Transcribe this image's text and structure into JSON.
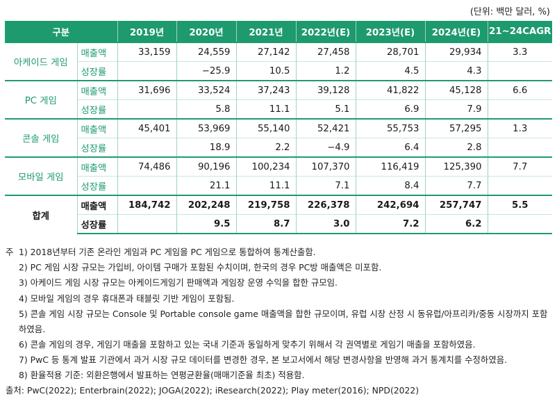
{
  "unit": "(단위: 백만 달러, %)",
  "table": {
    "headers": [
      "구분",
      "2019년",
      "2020년",
      "2021년",
      "2022년(E)",
      "2023년(E)",
      "2024년(E)",
      "21~24CAGR"
    ],
    "categories": [
      {
        "label": "아케이드 게임",
        "sales_label": "매출액",
        "sales": [
          "33,159",
          "24,559",
          "27,142",
          "27,458",
          "28,701",
          "29,934"
        ],
        "cagr": "3.3",
        "growth_label": "성장률",
        "growth": [
          "",
          "−25.9",
          "10.5",
          "1.2",
          "4.5",
          "4.3"
        ]
      },
      {
        "label": "PC 게임",
        "sales_label": "매출액",
        "sales": [
          "31,696",
          "33,524",
          "37,243",
          "39,128",
          "41,822",
          "45,128"
        ],
        "cagr": "6.6",
        "growth_label": "성장률",
        "growth": [
          "",
          "5.8",
          "11.1",
          "5.1",
          "6.9",
          "7.9"
        ]
      },
      {
        "label": "콘솔 게임",
        "sales_label": "매출액",
        "sales": [
          "45,401",
          "53,969",
          "55,140",
          "52,421",
          "55,753",
          "57,295"
        ],
        "cagr": "1.3",
        "growth_label": "성장률",
        "growth": [
          "",
          "18.9",
          "2.2",
          "−4.9",
          "6.4",
          "2.8"
        ]
      },
      {
        "label": "모바일 게임",
        "sales_label": "매출액",
        "sales": [
          "74,486",
          "90,196",
          "100,234",
          "107,370",
          "116,419",
          "125,390"
        ],
        "cagr": "7.7",
        "growth_label": "성장률",
        "growth": [
          "",
          "21.1",
          "11.1",
          "7.1",
          "8.4",
          "7.7"
        ]
      }
    ],
    "total": {
      "label": "합계",
      "sales_label": "매출액",
      "sales": [
        "184,742",
        "202,248",
        "219,758",
        "226,378",
        "242,694",
        "257,747"
      ],
      "cagr": "5.5",
      "growth_label": "성장률",
      "growth": [
        "",
        "9.5",
        "8.7",
        "3.0",
        "7.2",
        "6.2"
      ]
    }
  },
  "notes": {
    "prefix": "주",
    "items": [
      "1)  2018년부터 기존 온라인 게임과 PC 게임을 PC 게임으로 통합하여 통계산출함.",
      "2)  PC 게임 시장 규모는 가입비, 아이템 구매가 포함된 수치이며, 한국의 경우 PC방 매출액은 미포함.",
      "3)  아케이드 게임 시장 규모는 아케이드게임기 판매액과 게임장 운영 수익을 합한 규모임.",
      "4)  모바일 게임의 경우 휴대폰과 태블릿 기반 게임이 포함됨.",
      "5)  콘솔 게임 시장 규모는 Console 및 Portable console game 매출액을 합한 규모이며, 유럽 시장 산정 시 동유럽/아프리카/중동 시장까지 포함하였음.",
      "6)  콘솔 게임의 경우, 게임기 매출을 포함하고 있는 국내 기준과 동일하게 맞추기 위해서 각 권역별로 게임기 매출을 포함하였음.",
      "7)  PwC 등 통계 발표 기관에서 과거 시장 규모 데이터를 변경한 경우, 본 보고서에서 해당 변경사항을 반영해 과거 통계치를 수정하였음.",
      "8)  환율적용 기준: 외환은행에서 발표하는 연평균환율(매매기준율 최초) 적용함."
    ],
    "source": "출처: PwC(2022); Enterbrain(2022); JOGA(2022); iResearch(2022); Play meter(2016); NPD(2022)"
  }
}
